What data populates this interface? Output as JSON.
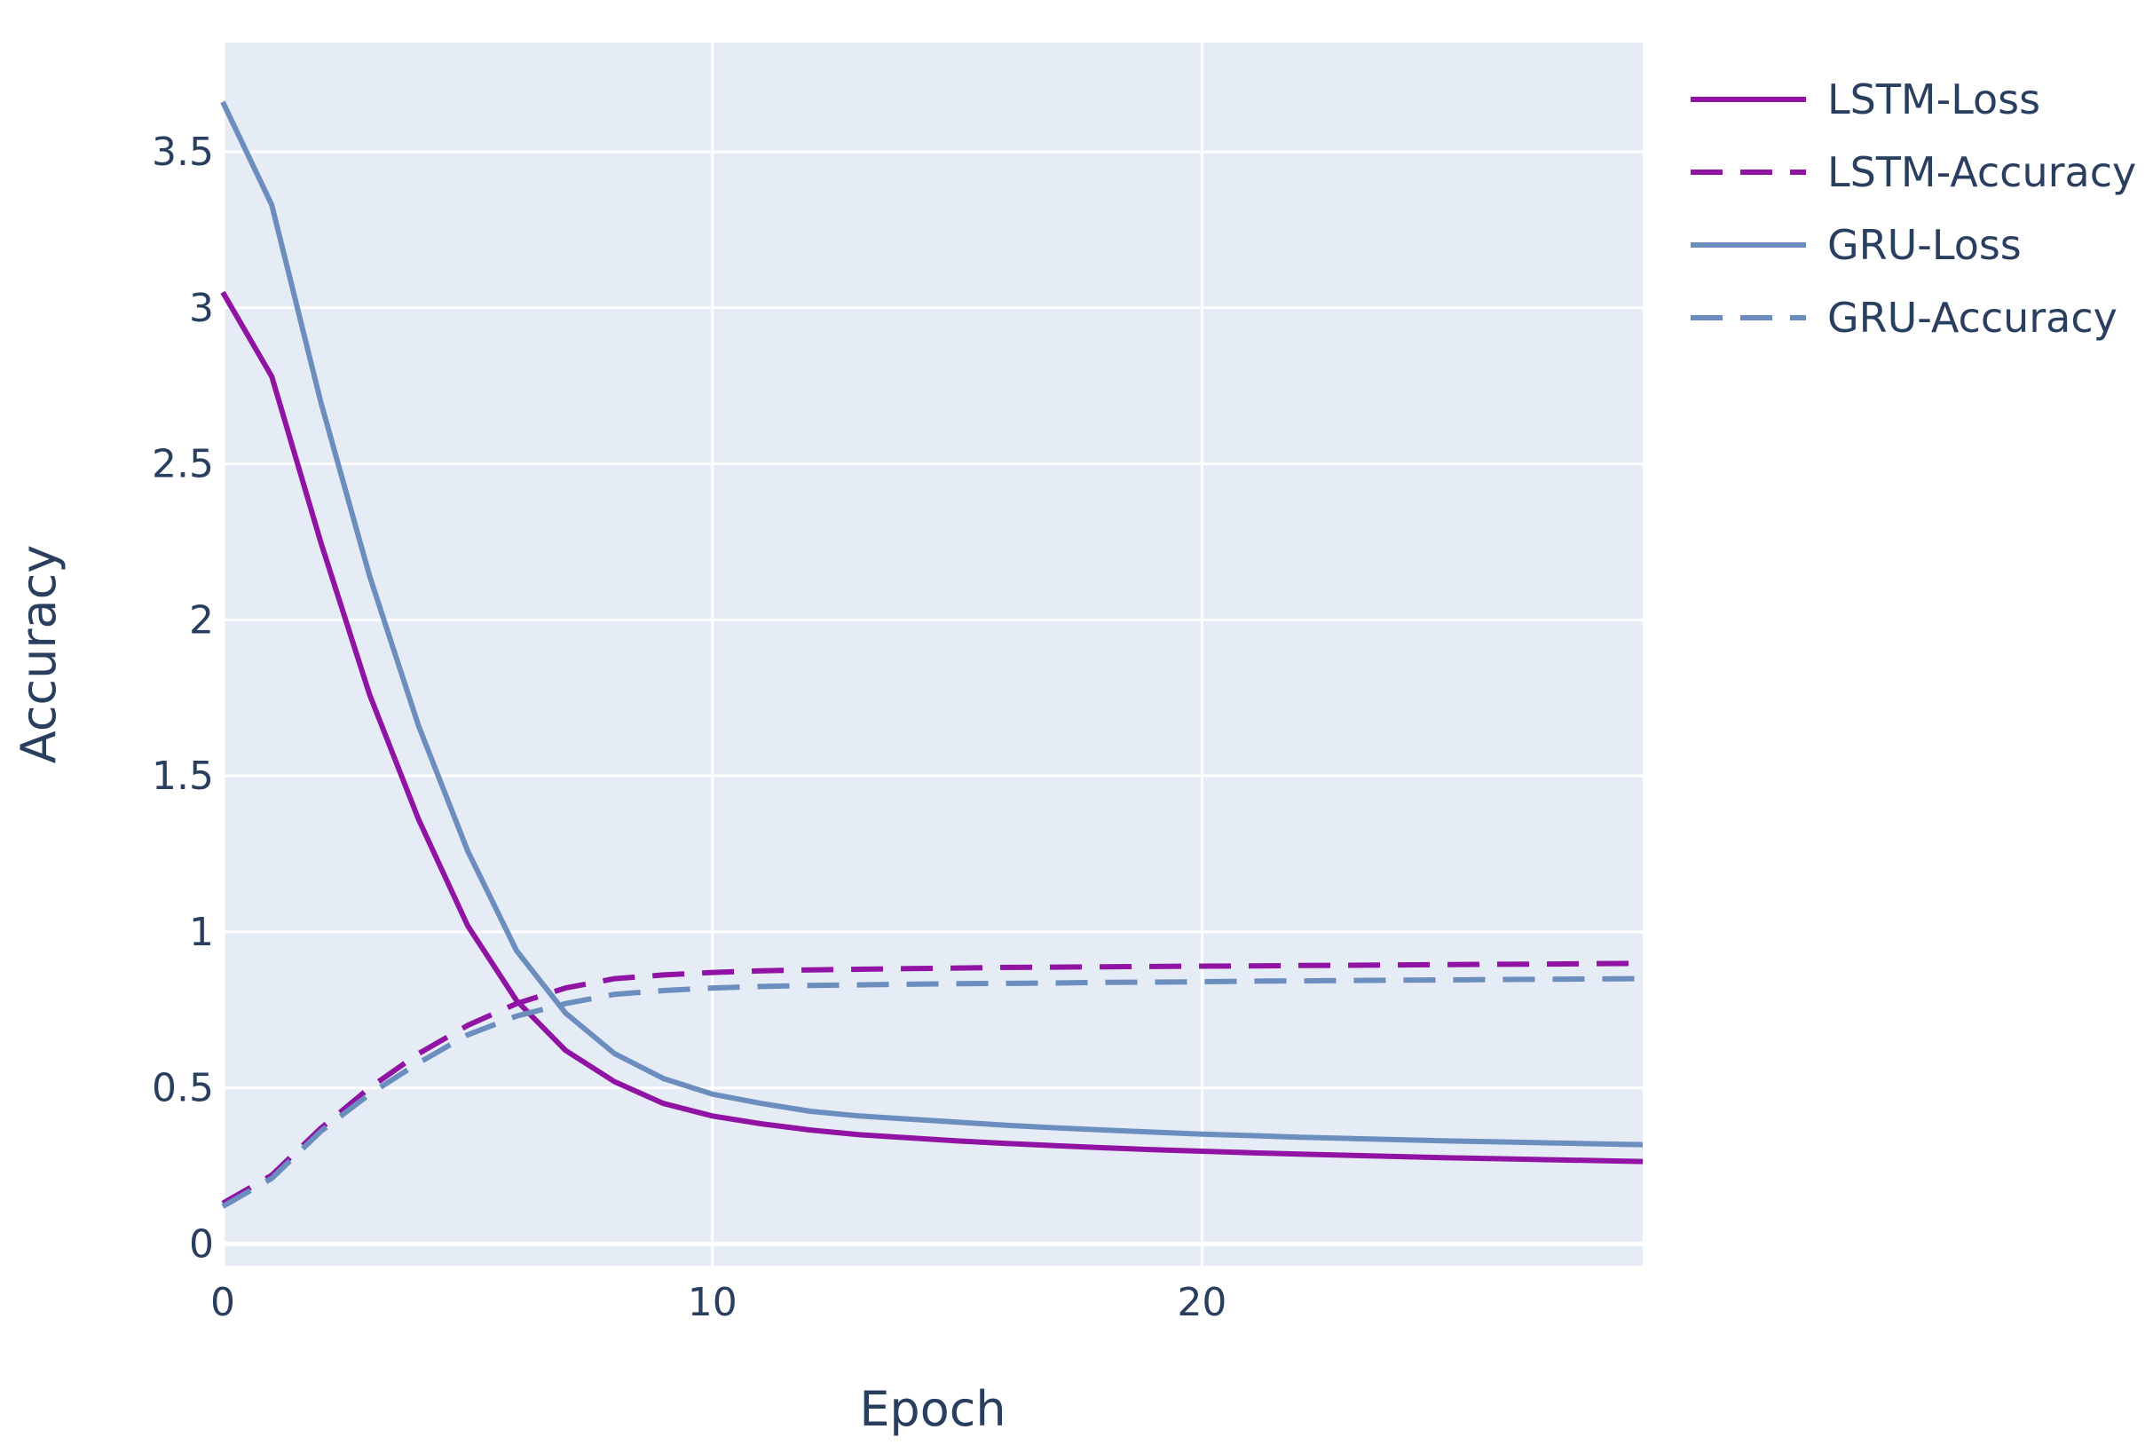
{
  "chart_data": {
    "type": "line",
    "title": "",
    "xlabel": "Epoch",
    "ylabel": "Accuracy",
    "xlim": [
      0,
      29
    ],
    "ylim": [
      -0.07,
      3.85
    ],
    "x_ticks": [
      0,
      10,
      20
    ],
    "y_ticks": [
      0,
      0.5,
      1,
      1.5,
      2,
      2.5,
      3,
      3.5
    ],
    "x_tick_labels": [
      "0",
      "10",
      "20"
    ],
    "y_tick_labels": [
      "0",
      "0.5",
      "1",
      "1.5",
      "2",
      "2.5",
      "3",
      "3.5"
    ],
    "grid": true,
    "legend_position": "right",
    "x": [
      0,
      1,
      2,
      3,
      4,
      5,
      6,
      7,
      8,
      9,
      10,
      11,
      12,
      13,
      14,
      15,
      16,
      17,
      18,
      19,
      20,
      21,
      22,
      23,
      24,
      25,
      26,
      27,
      28,
      29
    ],
    "series": [
      {
        "name": "LSTM-Loss",
        "color": "#9013a3",
        "dash": "solid",
        "values": [
          3.05,
          2.78,
          2.25,
          1.76,
          1.36,
          1.02,
          0.78,
          0.62,
          0.52,
          0.45,
          0.41,
          0.385,
          0.365,
          0.35,
          0.34,
          0.33,
          0.322,
          0.315,
          0.308,
          0.302,
          0.297,
          0.292,
          0.288,
          0.284,
          0.28,
          0.276,
          0.273,
          0.27,
          0.267,
          0.264
        ]
      },
      {
        "name": "LSTM-Accuracy",
        "color": "#9013a3",
        "dash": "dash",
        "values": [
          0.13,
          0.22,
          0.37,
          0.5,
          0.61,
          0.7,
          0.77,
          0.82,
          0.85,
          0.862,
          0.87,
          0.875,
          0.878,
          0.88,
          0.882,
          0.884,
          0.886,
          0.887,
          0.888,
          0.889,
          0.89,
          0.891,
          0.892,
          0.893,
          0.894,
          0.895,
          0.896,
          0.897,
          0.898,
          0.899
        ]
      },
      {
        "name": "GRU-Loss",
        "color": "#6c8ebf",
        "dash": "solid",
        "values": [
          3.66,
          3.33,
          2.7,
          2.14,
          1.66,
          1.26,
          0.94,
          0.74,
          0.61,
          0.53,
          0.48,
          0.45,
          0.425,
          0.41,
          0.4,
          0.39,
          0.38,
          0.372,
          0.365,
          0.358,
          0.352,
          0.347,
          0.342,
          0.338,
          0.334,
          0.33,
          0.327,
          0.324,
          0.321,
          0.318
        ]
      },
      {
        "name": "GRU-Accuracy",
        "color": "#6c8ebf",
        "dash": "dash",
        "values": [
          0.12,
          0.21,
          0.36,
          0.48,
          0.58,
          0.67,
          0.73,
          0.77,
          0.8,
          0.812,
          0.82,
          0.825,
          0.828,
          0.83,
          0.832,
          0.834,
          0.835,
          0.836,
          0.838,
          0.839,
          0.84,
          0.842,
          0.843,
          0.844,
          0.845,
          0.846,
          0.847,
          0.848,
          0.849,
          0.85
        ]
      }
    ]
  }
}
